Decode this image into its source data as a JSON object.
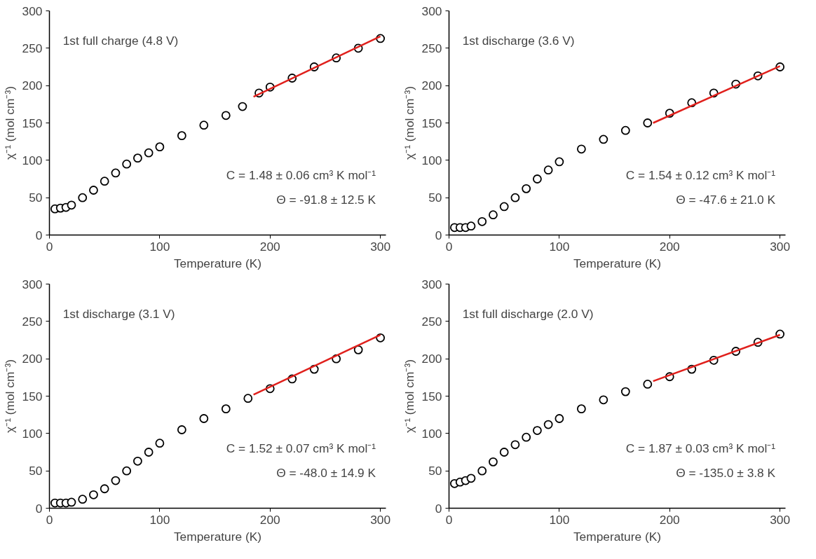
{
  "chart_data": [
    {
      "type": "scatter",
      "xlabel": "Temperature (K)",
      "ylabel": "χ⁻¹ (mol cm⁻³)",
      "xlim": [
        0,
        305
      ],
      "ylim": [
        0,
        300
      ],
      "xticks": [
        0,
        100,
        200,
        300
      ],
      "yticks": [
        0,
        50,
        100,
        150,
        200,
        250,
        300
      ],
      "grid": false,
      "annotations": [
        "1st full charge (4.8 V)",
        "C = 1.48 ± 0.06 cm³ K mol⁻¹",
        "Θ = -91.8 ± 12.5 K"
      ],
      "series": [
        {
          "marker": "circle",
          "color": "#000000",
          "x": [
            5,
            10,
            15,
            20,
            30,
            40,
            50,
            60,
            70,
            80,
            90,
            100,
            120,
            140,
            160,
            175,
            190,
            200,
            220,
            240,
            260,
            280,
            300
          ],
          "values": [
            35,
            36,
            37,
            40,
            50,
            60,
            72,
            83,
            95,
            103,
            110,
            118,
            133,
            147,
            160,
            172,
            190,
            198,
            210,
            225,
            237,
            250,
            263
          ]
        },
        {
          "type": "line",
          "marker": "none",
          "color": "#e0201c",
          "x": [
            185,
            300
          ],
          "values": [
            185,
            266
          ]
        }
      ]
    },
    {
      "type": "scatter",
      "xlabel": "Temperature (K)",
      "ylabel": "χ⁻¹ (mol cm⁻³)",
      "xlim": [
        0,
        305
      ],
      "ylim": [
        0,
        300
      ],
      "xticks": [
        0,
        100,
        200,
        300
      ],
      "yticks": [
        0,
        50,
        100,
        150,
        200,
        250,
        300
      ],
      "grid": false,
      "annotations": [
        "1st discharge (3.6 V)",
        "C = 1.54 ± 0.12 cm³ K mol⁻¹",
        "Θ = -47.6 ± 21.0 K"
      ],
      "series": [
        {
          "marker": "circle",
          "color": "#000000",
          "x": [
            5,
            10,
            15,
            20,
            30,
            40,
            50,
            60,
            70,
            80,
            90,
            100,
            120,
            140,
            160,
            180,
            200,
            220,
            240,
            260,
            280,
            300
          ],
          "values": [
            10,
            10,
            10,
            12,
            18,
            27,
            38,
            50,
            62,
            75,
            87,
            98,
            115,
            128,
            140,
            150,
            163,
            177,
            190,
            202,
            213,
            225
          ]
        },
        {
          "type": "line",
          "marker": "none",
          "color": "#e0201c",
          "x": [
            185,
            300
          ],
          "values": [
            150,
            226
          ]
        }
      ]
    },
    {
      "type": "scatter",
      "xlabel": "Temperature (K)",
      "ylabel": "χ⁻¹ (mol cm⁻³)",
      "xlim": [
        0,
        305
      ],
      "ylim": [
        0,
        300
      ],
      "xticks": [
        0,
        100,
        200,
        300
      ],
      "yticks": [
        0,
        50,
        100,
        150,
        200,
        250,
        300
      ],
      "grid": false,
      "annotations": [
        "1st discharge (3.1 V)",
        "C = 1.52 ± 0.07 cm³ K mol⁻¹",
        "Θ = -48.0 ± 14.9 K"
      ],
      "series": [
        {
          "marker": "circle",
          "color": "#000000",
          "x": [
            5,
            10,
            15,
            20,
            30,
            40,
            50,
            60,
            70,
            80,
            90,
            100,
            120,
            140,
            160,
            180,
            200,
            220,
            240,
            260,
            280,
            300
          ],
          "values": [
            7,
            7,
            7,
            8,
            12,
            18,
            26,
            37,
            50,
            63,
            75,
            87,
            105,
            120,
            133,
            147,
            160,
            173,
            186,
            200,
            212,
            228
          ]
        },
        {
          "type": "line",
          "marker": "none",
          "color": "#e0201c",
          "x": [
            185,
            300
          ],
          "values": [
            152,
            232
          ]
        }
      ]
    },
    {
      "type": "scatter",
      "xlabel": "Temperature (K)",
      "ylabel": "χ⁻¹ (mol cm⁻³)",
      "xlim": [
        0,
        305
      ],
      "ylim": [
        0,
        300
      ],
      "xticks": [
        0,
        100,
        200,
        300
      ],
      "yticks": [
        0,
        50,
        100,
        150,
        200,
        250,
        300
      ],
      "grid": false,
      "annotations": [
        "1st full discharge (2.0 V)",
        "C = 1.87 ± 0.03 cm³ K mol⁻¹",
        "Θ = -135.0 ± 3.8 K"
      ],
      "series": [
        {
          "marker": "circle",
          "color": "#000000",
          "x": [
            5,
            10,
            15,
            20,
            30,
            40,
            50,
            60,
            70,
            80,
            90,
            100,
            120,
            140,
            160,
            180,
            200,
            220,
            240,
            260,
            280,
            300
          ],
          "values": [
            33,
            35,
            37,
            40,
            50,
            62,
            75,
            85,
            95,
            104,
            112,
            120,
            133,
            145,
            156,
            166,
            176,
            186,
            198,
            210,
            222,
            233
          ]
        },
        {
          "type": "line",
          "marker": "none",
          "color": "#e0201c",
          "x": [
            185,
            300
          ],
          "values": [
            170,
            232
          ]
        }
      ]
    }
  ]
}
